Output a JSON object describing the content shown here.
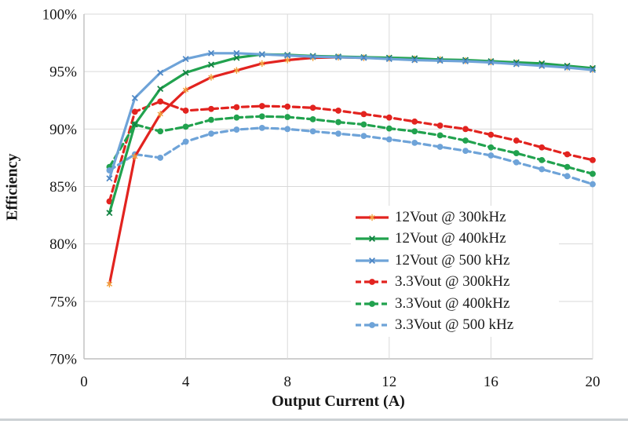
{
  "chart_data": {
    "type": "line",
    "title": "",
    "xlabel": "Output Current (A)",
    "ylabel": "Efficiency",
    "xlim": [
      0,
      20
    ],
    "ylim": [
      70,
      100
    ],
    "x_ticks": [
      0,
      4,
      8,
      12,
      16,
      20
    ],
    "y_ticks": [
      100,
      95,
      90,
      85,
      80,
      75,
      70
    ],
    "y_tick_suffix": "%",
    "grid": true,
    "legend_position": "inside-middle-right",
    "x": [
      1,
      2,
      3,
      4,
      5,
      6,
      7,
      8,
      9,
      10,
      11,
      12,
      13,
      14,
      15,
      16,
      17,
      18,
      19,
      20
    ],
    "series": [
      {
        "name": "12Vout @ 300kHz",
        "style": "solid",
        "marker": "star",
        "color": "#e2231f",
        "marker_color": "#f2a03d",
        "values": [
          76.5,
          87.6,
          91.3,
          93.4,
          94.5,
          95.1,
          95.7,
          96.0,
          96.2,
          96.25,
          96.2,
          96.15,
          96.1,
          96.05,
          95.95,
          95.85,
          95.75,
          95.6,
          95.4,
          95.2
        ]
      },
      {
        "name": "12Vout @ 400kHz",
        "style": "solid",
        "marker": "x",
        "color": "#21a24e",
        "marker_color": "#128142",
        "values": [
          82.7,
          90.4,
          93.5,
          94.9,
          95.6,
          96.2,
          96.5,
          96.45,
          96.35,
          96.3,
          96.25,
          96.2,
          96.15,
          96.05,
          96.0,
          95.9,
          95.8,
          95.7,
          95.5,
          95.3
        ]
      },
      {
        "name": "12Vout @ 500 kHz",
        "style": "solid",
        "marker": "x",
        "color": "#6ea3d8",
        "marker_color": "#4d86c4",
        "values": [
          85.7,
          92.7,
          94.9,
          96.1,
          96.6,
          96.6,
          96.5,
          96.4,
          96.3,
          96.25,
          96.2,
          96.1,
          96.0,
          95.95,
          95.9,
          95.8,
          95.65,
          95.5,
          95.35,
          95.15
        ]
      },
      {
        "name": "3.3Vout @ 300kHz",
        "style": "dashed",
        "marker": "dot",
        "color": "#e2231f",
        "marker_color": "#e2231f",
        "values": [
          83.7,
          91.5,
          92.4,
          91.6,
          91.75,
          91.9,
          92.0,
          91.95,
          91.85,
          91.6,
          91.3,
          91.0,
          90.65,
          90.3,
          90.0,
          89.5,
          89.0,
          88.4,
          87.8,
          87.3
        ]
      },
      {
        "name": "3.3Vout @ 400kHz",
        "style": "dashed",
        "marker": "dot",
        "color": "#21a24e",
        "marker_color": "#21a24e",
        "values": [
          86.7,
          90.4,
          89.8,
          90.2,
          90.8,
          91.0,
          91.1,
          91.05,
          90.85,
          90.6,
          90.4,
          90.05,
          89.8,
          89.45,
          89.0,
          88.4,
          87.9,
          87.3,
          86.7,
          86.1
        ]
      },
      {
        "name": "3.3Vout @ 500 kHz",
        "style": "dashed",
        "marker": "dot",
        "color": "#6ea3d8",
        "marker_color": "#6ea3d8",
        "values": [
          86.4,
          87.8,
          87.5,
          88.9,
          89.6,
          89.95,
          90.1,
          90.0,
          89.8,
          89.6,
          89.4,
          89.1,
          88.8,
          88.45,
          88.1,
          87.7,
          87.1,
          86.5,
          85.9,
          85.2
        ]
      }
    ]
  },
  "colors": {
    "grid": "#d9d9d9",
    "axis": "#bfbfbf",
    "text": "#161616",
    "page_divider": "#ccd1d4",
    "background": "#ffffff"
  }
}
